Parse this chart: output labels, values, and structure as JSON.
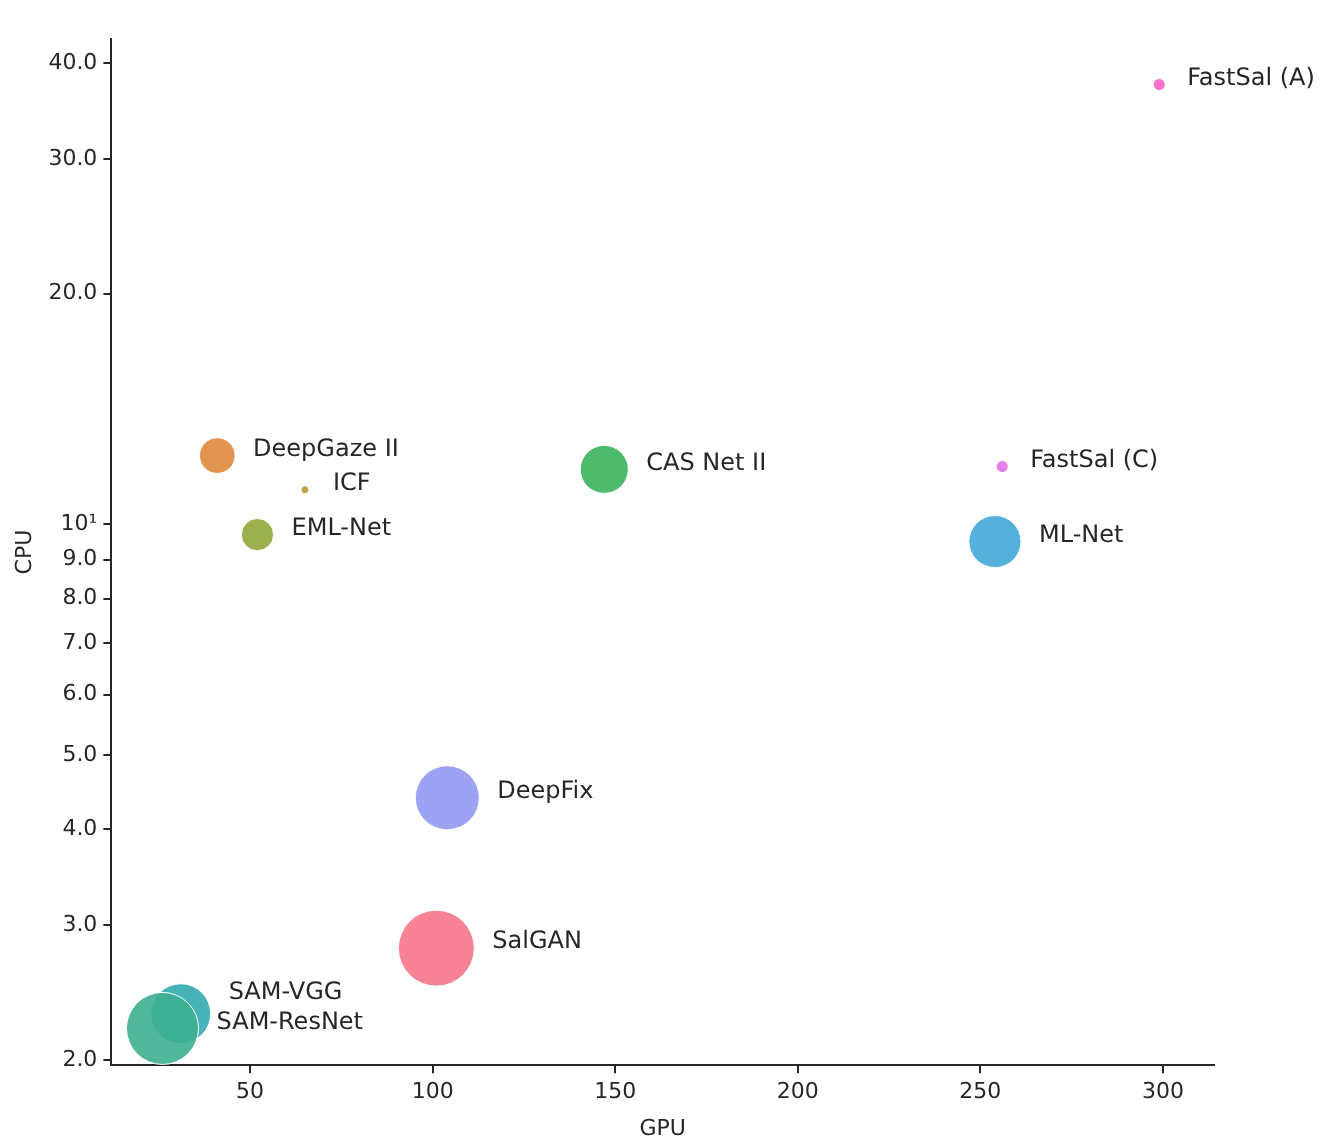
{
  "chart_data": {
    "type": "bubble",
    "xlabel": "GPU",
    "ylabel": "CPU",
    "log": "y",
    "grid": false,
    "legend": false,
    "xlim": [
      12,
      314
    ],
    "xticks": [
      50,
      100,
      150,
      200,
      250,
      300
    ],
    "ylim": [
      1.97,
      43
    ],
    "yticks": [
      {
        "value": 2,
        "label": "2.0"
      },
      {
        "value": 3,
        "label": "3.0"
      },
      {
        "value": 4,
        "label": "4.0"
      },
      {
        "value": 5,
        "label": "5.0"
      },
      {
        "value": 6,
        "label": "6.0"
      },
      {
        "value": 7,
        "label": "7.0"
      },
      {
        "value": 8,
        "label": "8.0"
      },
      {
        "value": 9,
        "label": "9.0"
      },
      {
        "value": 10,
        "label": "10¹"
      },
      {
        "value": 20,
        "label": "20.0"
      },
      {
        "value": 30,
        "label": "30.0"
      },
      {
        "value": 40,
        "label": "40.0"
      }
    ],
    "series": [
      {
        "name": "FastSal (A)",
        "color": "#f564c8",
        "x": [
          299
        ],
        "values": [
          37.5
        ],
        "sizes": [
          0.025
        ]
      },
      {
        "name": "DeepGaze II",
        "color": "#e08a3c",
        "x": [
          41
        ],
        "values": [
          12.3
        ],
        "sizes": [
          0.22
        ]
      },
      {
        "name": "ICF",
        "color": "#b59a2f",
        "x": [
          65
        ],
        "values": [
          11.1
        ],
        "sizes": [
          0.011
        ]
      },
      {
        "name": "EML-Net",
        "color": "#8fa93a",
        "x": [
          52
        ],
        "values": [
          9.7
        ],
        "sizes": [
          0.18
        ]
      },
      {
        "name": "CAS Net II",
        "color": "#3bb45c",
        "x": [
          147
        ],
        "values": [
          11.8
        ],
        "sizes": [
          0.4
        ]
      },
      {
        "name": "FastSal (C)",
        "color": "#e572e8",
        "x": [
          256
        ],
        "values": [
          11.9
        ],
        "sizes": [
          0.025
        ]
      },
      {
        "name": "ML-Net",
        "color": "#42a8d8",
        "x": [
          254
        ],
        "values": [
          9.5
        ],
        "sizes": [
          0.47
        ]
      },
      {
        "name": "DeepFix",
        "color": "#9398f2",
        "x": [
          104
        ],
        "values": [
          4.4
        ],
        "sizes": [
          0.71
        ]
      },
      {
        "name": "SalGAN",
        "color": "#f7768c",
        "x": [
          101
        ],
        "values": [
          2.8
        ],
        "sizes": [
          1
        ]
      },
      {
        "name": "SAM-ResNet",
        "color": "#3daf90",
        "x": [
          26
        ],
        "values": [
          2.2
        ],
        "sizes": [
          0.9
        ]
      },
      {
        "name": "SAM-VGG",
        "color": "#33aab0",
        "x": [
          31
        ],
        "values": [
          2.3
        ],
        "sizes": [
          0.62
        ]
      }
    ]
  }
}
